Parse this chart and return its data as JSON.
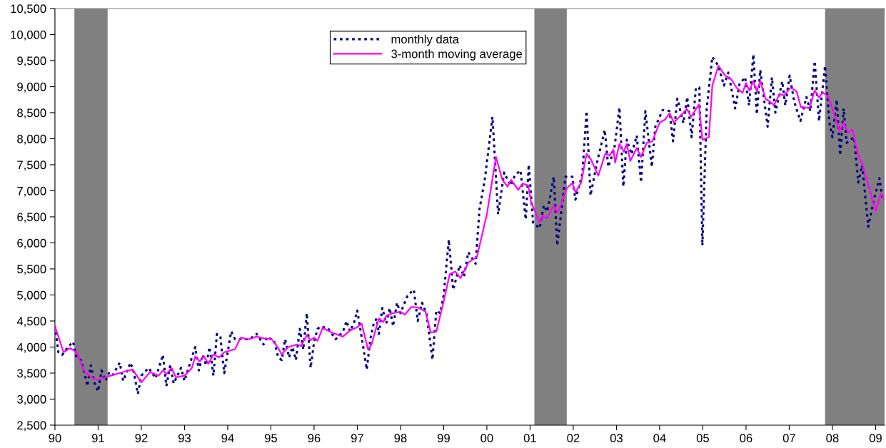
{
  "chart_data": {
    "type": "line",
    "xlim": [
      1990,
      2009.2
    ],
    "xticks": [
      {
        "value": 1990,
        "label": "90"
      },
      {
        "value": 1991,
        "label": "91"
      },
      {
        "value": 1992,
        "label": "92"
      },
      {
        "value": 1993,
        "label": "93"
      },
      {
        "value": 1994,
        "label": "94"
      },
      {
        "value": 1995,
        "label": "95"
      },
      {
        "value": 1996,
        "label": "96"
      },
      {
        "value": 1997,
        "label": "97"
      },
      {
        "value": 1998,
        "label": "98"
      },
      {
        "value": 1999,
        "label": "99"
      },
      {
        "value": 2000,
        "label": "00"
      },
      {
        "value": 2001,
        "label": "01"
      },
      {
        "value": 2002,
        "label": "02"
      },
      {
        "value": 2003,
        "label": "03"
      },
      {
        "value": 2004,
        "label": "04"
      },
      {
        "value": 2005,
        "label": "05"
      },
      {
        "value": 2006,
        "label": "06"
      },
      {
        "value": 2007,
        "label": "07"
      },
      {
        "value": 2008,
        "label": "08"
      },
      {
        "value": 2009,
        "label": "09"
      }
    ],
    "ylim": [
      2500,
      10500
    ],
    "yticks": [
      {
        "value": 2500,
        "label": "2,500"
      },
      {
        "value": 3000,
        "label": "3,000"
      },
      {
        "value": 3500,
        "label": "3,500"
      },
      {
        "value": 4000,
        "label": "4,000"
      },
      {
        "value": 4500,
        "label": "4,500"
      },
      {
        "value": 5000,
        "label": "5,000"
      },
      {
        "value": 5500,
        "label": "5,500"
      },
      {
        "value": 6000,
        "label": "6,000"
      },
      {
        "value": 6500,
        "label": "6,500"
      },
      {
        "value": 7000,
        "label": "7,000"
      },
      {
        "value": 7500,
        "label": "7,500"
      },
      {
        "value": 8000,
        "label": "8,000"
      },
      {
        "value": 8500,
        "label": "8,500"
      },
      {
        "value": 9000,
        "label": "9,000"
      },
      {
        "value": 9500,
        "label": "9,500"
      },
      {
        "value": 10000,
        "label": "10,000"
      },
      {
        "value": 10500,
        "label": "10,500"
      }
    ],
    "grid": false,
    "legend": "top",
    "marker": "none",
    "bands": [
      {
        "axis": "x",
        "from": 1990.45,
        "to": 1991.22,
        "color": "#808080"
      },
      {
        "axis": "x",
        "from": 2001.1,
        "to": 2001.85,
        "color": "#808080"
      },
      {
        "axis": "x",
        "from": 2007.83,
        "to": 2009.2,
        "color": "#808080"
      }
    ],
    "series": [
      {
        "name": "monthly data",
        "color": "#000080",
        "line_style": "dotted",
        "x": [
          1990.0,
          1990.08,
          1990.17,
          1990.3,
          1990.42,
          1990.5,
          1990.6,
          1990.7,
          1990.75,
          1990.83,
          1990.92,
          1991.0,
          1991.08,
          1991.17,
          1991.25,
          1991.33,
          1991.5,
          1991.58,
          1991.75,
          1991.83,
          1991.92,
          1992.0,
          1992.17,
          1992.33,
          1992.5,
          1992.58,
          1992.67,
          1992.75,
          1992.92,
          1993.0,
          1993.17,
          1993.25,
          1993.33,
          1993.42,
          1993.5,
          1993.58,
          1993.67,
          1993.75,
          1993.83,
          1993.92,
          1994.08,
          1994.17,
          1994.33,
          1994.5,
          1994.67,
          1994.83,
          1994.92,
          1995.08,
          1995.17,
          1995.25,
          1995.33,
          1995.42,
          1995.5,
          1995.58,
          1995.67,
          1995.75,
          1995.83,
          1995.92,
          1996.0,
          1996.08,
          1996.17,
          1996.33,
          1996.5,
          1996.67,
          1996.75,
          1996.83,
          1996.92,
          1997.0,
          1997.08,
          1997.22,
          1997.3,
          1997.38,
          1997.45,
          1997.5,
          1997.58,
          1997.67,
          1997.75,
          1997.83,
          1997.92,
          1998.0,
          1998.17,
          1998.31,
          1998.4,
          1998.5,
          1998.6,
          1998.74,
          1998.83,
          1998.92,
          1999.0,
          1999.12,
          1999.22,
          1999.37,
          1999.47,
          1999.57,
          1999.74,
          1999.83,
          1999.95,
          2000.13,
          2000.26,
          2000.4,
          2000.55,
          2000.65,
          2000.78,
          2000.9,
          2000.97,
          2001.07,
          2001.22,
          2001.32,
          2001.4,
          2001.55,
          2001.63,
          2001.82,
          2001.98,
          2002.05,
          2002.21,
          2002.31,
          2002.4,
          2002.55,
          2002.73,
          2002.81,
          2002.95,
          2003.07,
          2003.16,
          2003.24,
          2003.35,
          2003.47,
          2003.57,
          2003.67,
          2003.82,
          2003.9,
          2004.07,
          2004.23,
          2004.31,
          2004.41,
          2004.55,
          2004.64,
          2004.74,
          2004.84,
          2004.92,
          2004.99,
          2005.09,
          2005.22,
          2005.36,
          2005.49,
          2005.59,
          2005.75,
          2005.85,
          2005.98,
          2006.07,
          2006.17,
          2006.25,
          2006.33,
          2006.5,
          2006.6,
          2006.68,
          2006.84,
          2006.91,
          2007.01,
          2007.12,
          2007.26,
          2007.4,
          2007.49,
          2007.59,
          2007.69,
          2007.83,
          2007.93,
          2008.0,
          2008.1,
          2008.18,
          2008.26,
          2008.33,
          2008.5,
          2008.6,
          2008.69,
          2008.83,
          2008.96,
          2009.09,
          2009.16
        ],
        "values": [
          4400,
          3900,
          3850,
          4000,
          4100,
          3800,
          3750,
          3450,
          3250,
          3650,
          3300,
          3150,
          3550,
          3350,
          3500,
          3450,
          3700,
          3350,
          3700,
          3500,
          3100,
          3450,
          3600,
          3400,
          3850,
          3250,
          3650,
          3300,
          3600,
          3350,
          3800,
          4000,
          3550,
          3850,
          3650,
          4000,
          3450,
          4250,
          4200,
          3500,
          4300,
          4150,
          4150,
          4150,
          4250,
          4050,
          4200,
          4100,
          3800,
          3750,
          4150,
          3800,
          4000,
          3750,
          4350,
          3950,
          4650,
          3600,
          4100,
          4350,
          4400,
          4350,
          4150,
          4300,
          4500,
          4300,
          4450,
          4700,
          4300,
          3570,
          4150,
          4450,
          4550,
          4250,
          4750,
          4450,
          4750,
          4400,
          4850,
          4650,
          5000,
          5100,
          4500,
          4850,
          4650,
          3760,
          4700,
          4650,
          5000,
          6060,
          5100,
          5570,
          5350,
          5820,
          5600,
          6650,
          7200,
          8420,
          6550,
          7350,
          7100,
          7300,
          7390,
          6450,
          7500,
          6390,
          6280,
          6720,
          6600,
          7270,
          5950,
          7270,
          7270,
          6830,
          7320,
          8530,
          6910,
          7540,
          8170,
          7460,
          7800,
          8600,
          7080,
          7980,
          7700,
          8060,
          7160,
          8530,
          7460,
          8230,
          8550,
          8530,
          7950,
          8770,
          8300,
          8800,
          8030,
          8980,
          8980,
          5950,
          8580,
          9570,
          9400,
          9020,
          9270,
          8580,
          9050,
          9180,
          8640,
          9620,
          8470,
          9320,
          8230,
          9180,
          8500,
          9100,
          8640,
          9210,
          8700,
          8340,
          8800,
          8530,
          9490,
          8340,
          9400,
          8310,
          8030,
          8750,
          7680,
          8580,
          7920,
          8030,
          7160,
          7490,
          6310,
          6830,
          7240,
          6830
        ]
      },
      {
        "name": "3-month moving average",
        "color": "#ff00ff",
        "line_style": "solid",
        "x": [
          1990.0,
          1990.2,
          1990.35,
          1990.5,
          1990.67,
          1990.83,
          1991.0,
          1991.2,
          1991.5,
          1991.67,
          1991.8,
          1992.0,
          1992.2,
          1992.4,
          1992.5,
          1992.58,
          1992.7,
          1992.8,
          1993.0,
          1993.17,
          1993.25,
          1993.35,
          1993.45,
          1993.55,
          1993.67,
          1993.8,
          1993.92,
          1994.17,
          1994.3,
          1994.5,
          1994.67,
          1994.92,
          1995.0,
          1995.17,
          1995.25,
          1995.4,
          1995.6,
          1995.7,
          1995.83,
          1995.92,
          1996.0,
          1996.08,
          1996.2,
          1996.4,
          1996.67,
          1996.83,
          1997.0,
          1997.1,
          1997.25,
          1997.33,
          1997.5,
          1997.6,
          1997.67,
          1997.83,
          1998.0,
          1998.1,
          1998.25,
          1998.4,
          1998.58,
          1998.7,
          1998.83,
          1998.98,
          1999.14,
          1999.27,
          1999.39,
          1999.57,
          1999.77,
          2000.0,
          2000.21,
          2000.36,
          2000.48,
          2000.56,
          2000.73,
          2000.83,
          2000.96,
          2001.02,
          2001.22,
          2001.29,
          2001.39,
          2001.55,
          2001.63,
          2001.72,
          2001.85,
          2001.98,
          2002.05,
          2002.18,
          2002.31,
          2002.41,
          2002.58,
          2002.74,
          2002.84,
          2002.93,
          2002.97,
          2003.07,
          2003.17,
          2003.24,
          2003.32,
          2003.47,
          2003.57,
          2003.7,
          2003.83,
          2004.0,
          2004.13,
          2004.23,
          2004.33,
          2004.46,
          2004.63,
          2004.73,
          2004.91,
          2004.99,
          2005.14,
          2005.22,
          2005.36,
          2005.52,
          2005.65,
          2005.79,
          2005.92,
          2006.0,
          2006.08,
          2006.17,
          2006.25,
          2006.33,
          2006.45,
          2006.65,
          2006.78,
          2006.88,
          2007.03,
          2007.17,
          2007.27,
          2007.47,
          2007.59,
          2007.69,
          2007.77,
          2007.9,
          2008.0,
          2008.17,
          2008.26,
          2008.36,
          2008.46,
          2008.6,
          2008.69,
          2008.89,
          2009.0,
          2009.12,
          2009.19
        ],
        "values": [
          4400,
          3900,
          3980,
          3900,
          3550,
          3420,
          3370,
          3430,
          3500,
          3540,
          3570,
          3320,
          3520,
          3450,
          3550,
          3480,
          3600,
          3420,
          3450,
          3600,
          3820,
          3720,
          3820,
          3680,
          3860,
          3800,
          3900,
          3960,
          4180,
          4150,
          4200,
          4150,
          4170,
          3980,
          3860,
          4000,
          4050,
          4020,
          4230,
          4130,
          4180,
          4120,
          4370,
          4280,
          4200,
          4320,
          4380,
          4450,
          3950,
          4050,
          4550,
          4480,
          4600,
          4650,
          4680,
          4620,
          4770,
          4760,
          4680,
          4280,
          4300,
          4800,
          5400,
          5450,
          5320,
          5620,
          5730,
          6550,
          7650,
          7210,
          7080,
          7210,
          7020,
          7140,
          7100,
          6800,
          6390,
          6520,
          6470,
          6720,
          6580,
          6740,
          7050,
          7150,
          6970,
          7150,
          7710,
          7600,
          7290,
          7710,
          7680,
          7790,
          7540,
          7900,
          7750,
          7900,
          7570,
          7820,
          7650,
          7920,
          7950,
          8310,
          8370,
          8490,
          8310,
          8420,
          8570,
          8420,
          8660,
          7980,
          8030,
          9020,
          9400,
          9210,
          9150,
          8970,
          8880,
          9070,
          8920,
          9110,
          8910,
          9110,
          8770,
          8650,
          8860,
          8830,
          8980,
          8910,
          8610,
          8590,
          8930,
          8790,
          8890,
          8820,
          8580,
          8140,
          8310,
          8120,
          8180,
          7680,
          7520,
          6940,
          6610,
          6940,
          6850
        ]
      }
    ]
  }
}
